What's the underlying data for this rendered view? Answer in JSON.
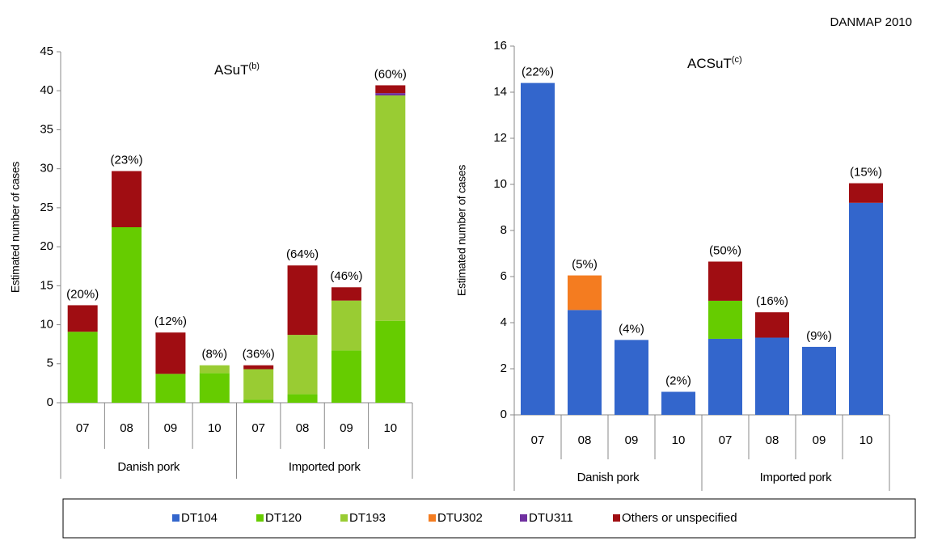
{
  "header": {
    "source": "DANMAP 2010"
  },
  "legend": {
    "items": [
      {
        "name": "DT104",
        "color": "#3366cc"
      },
      {
        "name": "DT120",
        "color": "#66cc00"
      },
      {
        "name": "DT193",
        "color": "#99cc33"
      },
      {
        "name": "DTU302",
        "color": "#f47c20"
      },
      {
        "name": "DTU311",
        "color": "#7030a0"
      },
      {
        "name": "Others or unspecified",
        "color": "#a00d12"
      }
    ]
  },
  "chart_data": [
    {
      "type": "stacked_bar",
      "title": "ASuT",
      "title_superscript": "(b)",
      "y_label": "Estimated number of cases",
      "categories": [
        "07",
        "08",
        "09",
        "10",
        "07",
        "08",
        "09",
        "10"
      ],
      "groups": [
        "Danish pork",
        "Imported pork"
      ],
      "series": [
        {
          "name": "DT120",
          "color": "#66cc00",
          "values": [
            9.1,
            22.5,
            3.7,
            3.8,
            0.4,
            1.1,
            6.7,
            10.5
          ]
        },
        {
          "name": "DT193",
          "color": "#99cc33",
          "values": [
            null,
            null,
            null,
            1.0,
            3.9,
            7.6,
            6.4,
            28.9
          ]
        },
        {
          "name": "DTU311",
          "color": "#7030a0",
          "values": [
            null,
            null,
            null,
            null,
            null,
            null,
            null,
            0.3
          ]
        },
        {
          "name": "Others or unspecified",
          "color": "#a00d12",
          "values": [
            3.4,
            7.2,
            5.3,
            null,
            0.5,
            8.9,
            1.7,
            1.0
          ]
        }
      ],
      "top_labels": [
        "(20%)",
        "(23%)",
        "(12%)",
        "(8%)",
        "(36%)",
        "(64%)",
        "(46%)",
        "(60%)"
      ],
      "ylim": [
        0,
        45
      ],
      "yticks": [
        0,
        5,
        10,
        15,
        20,
        25,
        30,
        35,
        40,
        45
      ]
    },
    {
      "type": "stacked_bar",
      "title": "ACSuT",
      "title_superscript": "(c)",
      "y_label": "Estimated number of cases",
      "categories": [
        "07",
        "08",
        "09",
        "10",
        "07",
        "08",
        "09",
        "10"
      ],
      "groups": [
        "Danish pork",
        "Imported pork"
      ],
      "series": [
        {
          "name": "DT104",
          "color": "#3366cc",
          "values": [
            14.4,
            4.55,
            3.25,
            1.0,
            3.3,
            3.35,
            2.95,
            9.2
          ]
        },
        {
          "name": "DT120",
          "color": "#66cc00",
          "values": [
            null,
            null,
            null,
            null,
            1.65,
            null,
            null,
            null
          ]
        },
        {
          "name": "DTU302",
          "color": "#f47c20",
          "values": [
            null,
            1.5,
            null,
            null,
            null,
            null,
            null,
            null
          ]
        },
        {
          "name": "Others or unspecified",
          "color": "#a00d12",
          "values": [
            null,
            null,
            null,
            null,
            1.7,
            1.1,
            null,
            0.85
          ]
        }
      ],
      "top_labels": [
        "(22%)",
        "(5%)",
        "(4%)",
        "(2%)",
        "(50%)",
        "(16%)",
        "(9%)",
        "(15%)"
      ],
      "ylim": [
        0,
        16
      ],
      "yticks": [
        0,
        2,
        4,
        6,
        8,
        10,
        12,
        14,
        16
      ]
    }
  ]
}
